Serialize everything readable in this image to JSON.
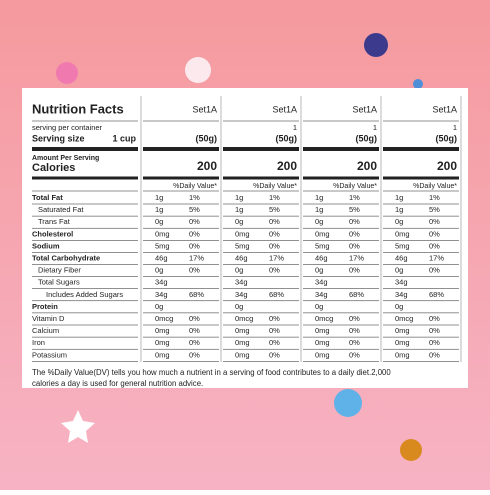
{
  "header": {
    "title": "Nutrition Facts",
    "serving_per_container": "serving per container",
    "serving_size_label": "Serving size",
    "serving_size_value": "1 cup",
    "amount_per_serving": "Amount Per Serving",
    "calories_label": "Calories"
  },
  "nutrients": [
    "Total Fat",
    "Saturated  Fat",
    "Trans Fat",
    "Cholesterol",
    "Sodium",
    "Total Carbohydrate",
    "Dietary Fiber",
    "Total Sugars",
    "Includes Added Sugars",
    "Protein",
    "Vitamin D",
    "Calcium",
    "Iron",
    "Potassium"
  ],
  "columns": [
    {
      "name": "Set1A",
      "servings": null,
      "serving_weight": "(50g)",
      "calories": "200",
      "dv_header": "%Daily Value*",
      "rows": [
        [
          "1g",
          "1%"
        ],
        [
          "1g",
          "5%"
        ],
        [
          "0g",
          "0%"
        ],
        [
          "0mg",
          "0%"
        ],
        [
          "5mg",
          "0%"
        ],
        [
          "46g",
          "17%"
        ],
        [
          "0g",
          "0%"
        ],
        [
          "34g",
          null
        ],
        [
          "34g",
          "68%"
        ],
        [
          "0g",
          null
        ],
        [
          "0mcg",
          "0%"
        ],
        [
          "0mg",
          "0%"
        ],
        [
          "0mg",
          "0%"
        ],
        [
          "0mg",
          "0%"
        ]
      ]
    },
    {
      "name": "Set1A",
      "servings": "1",
      "serving_weight": "(50g)",
      "calories": "200",
      "dv_header": "%Daily Value*",
      "rows": [
        [
          "1g",
          "1%"
        ],
        [
          "1g",
          "5%"
        ],
        [
          "0g",
          "0%"
        ],
        [
          "0mg",
          "0%"
        ],
        [
          "5mg",
          "0%"
        ],
        [
          "46g",
          "17%"
        ],
        [
          "0g",
          "0%"
        ],
        [
          "34g",
          null
        ],
        [
          "34g",
          "68%"
        ],
        [
          "0g",
          null
        ],
        [
          "0mcg",
          "0%"
        ],
        [
          "0mg",
          "0%"
        ],
        [
          "0mg",
          "0%"
        ],
        [
          "0mg",
          "0%"
        ]
      ]
    },
    {
      "name": "Set1A",
      "servings": "1",
      "serving_weight": "(50g)",
      "calories": "200",
      "dv_header": "%Daily Value*",
      "rows": [
        [
          "1g",
          "1%"
        ],
        [
          "1g",
          "5%"
        ],
        [
          "0g",
          "0%"
        ],
        [
          "0mg",
          "0%"
        ],
        [
          "5mg",
          "0%"
        ],
        [
          "46g",
          "17%"
        ],
        [
          "0g",
          "0%"
        ],
        [
          "34g",
          null
        ],
        [
          "34g",
          "68%"
        ],
        [
          "0g",
          null
        ],
        [
          "0mcg",
          "0%"
        ],
        [
          "0mg",
          "0%"
        ],
        [
          "0mg",
          "0%"
        ],
        [
          "0mg",
          "0%"
        ]
      ]
    },
    {
      "name": "Set1A",
      "servings": "1",
      "serving_weight": "(50g)",
      "calories": "200",
      "dv_header": "%Daily Value*",
      "rows": [
        [
          "1g",
          "1%"
        ],
        [
          "1g",
          "5%"
        ],
        [
          "0g",
          "0%"
        ],
        [
          "0mg",
          "0%"
        ],
        [
          "5mg",
          "0%"
        ],
        [
          "46g",
          "17%"
        ],
        [
          "0g",
          "0%"
        ],
        [
          "34g",
          null
        ],
        [
          "34g",
          "68%"
        ],
        [
          "0g",
          null
        ],
        [
          "0mcg",
          "0%"
        ],
        [
          "0mg",
          "0%"
        ],
        [
          "0mg",
          "0%"
        ],
        [
          "0mg",
          "0%"
        ]
      ]
    }
  ],
  "footnote": [
    "The %Daily Value(DV) tells you how much a nutrient in a serving of food contributes to a daily diet.2,000",
    "calories a day is used for general nutrition advice."
  ]
}
